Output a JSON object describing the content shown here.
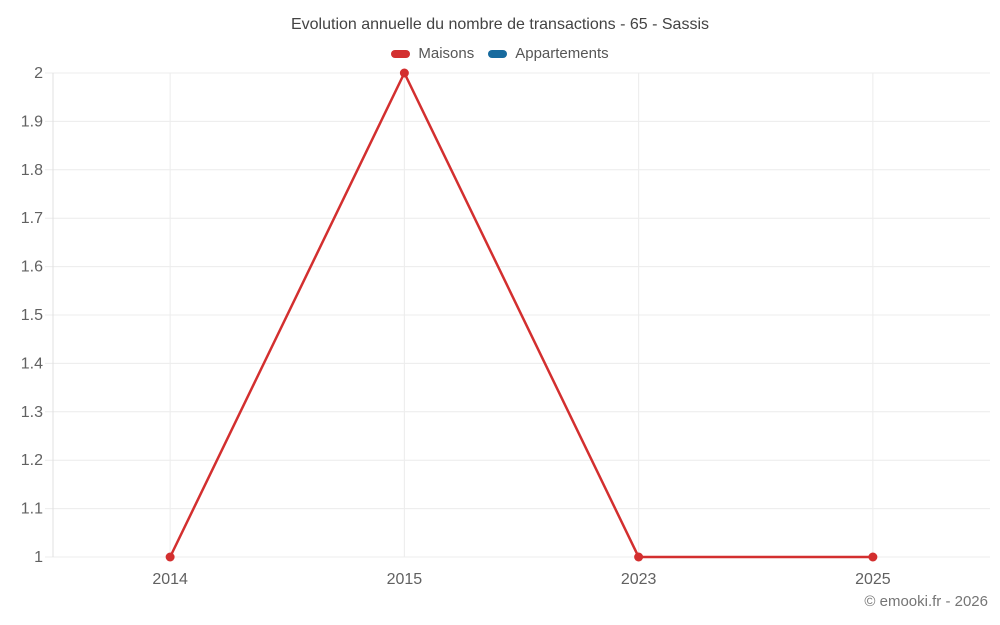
{
  "title": "Evolution annuelle du nombre de transactions - 65 - Sassis",
  "legend": [
    {
      "label": "Maisons",
      "color": "#d32f2f"
    },
    {
      "label": "Appartements",
      "color": "#176a9e"
    }
  ],
  "copyright": "© emooki.fr - 2026",
  "colors": {
    "gridline": "#ececec",
    "axis_line": "#e0e0e0",
    "tick_label": "#616161"
  },
  "chart_data": {
    "type": "line",
    "title": "Evolution annuelle du nombre de transactions - 65 - Sassis",
    "categories": [
      "2014",
      "2015",
      "2023",
      "2025"
    ],
    "series": [
      {
        "name": "Maisons",
        "color": "#d32f2f",
        "values": [
          1,
          2,
          1,
          1
        ]
      },
      {
        "name": "Appartements",
        "color": "#176a9e",
        "values": []
      }
    ],
    "xlabel": "",
    "ylabel": "",
    "ylim": [
      1,
      2
    ],
    "yticks": [
      1,
      1.1,
      1.2,
      1.3,
      1.4,
      1.5,
      1.6,
      1.7,
      1.8,
      1.9,
      2
    ],
    "grid": true,
    "legend_position": "top"
  }
}
